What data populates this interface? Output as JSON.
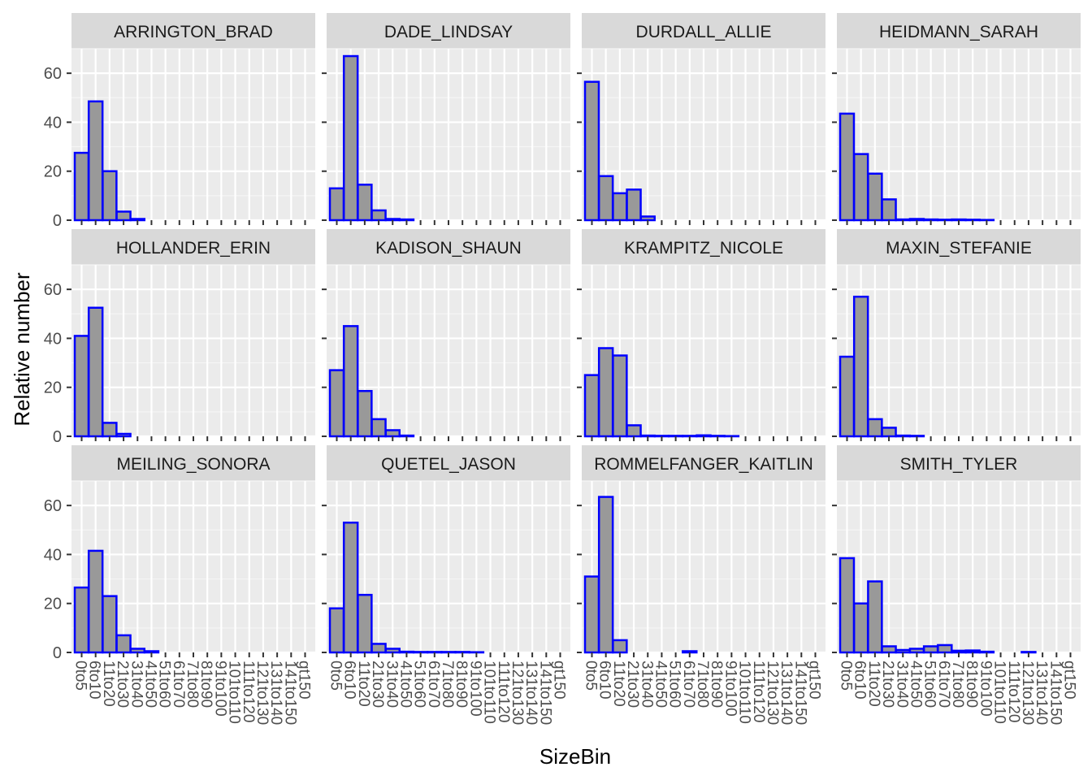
{
  "chart_data": {
    "type": "bar",
    "xlabel": "SizeBin",
    "ylabel": "Relative number",
    "yticks": [
      0,
      20,
      40,
      60
    ],
    "ylim": [
      0,
      70
    ],
    "categories": [
      "0to5",
      "6to10",
      "11to20",
      "21to30",
      "31to40",
      "41to50",
      "51to60",
      "61to70",
      "71to80",
      "81to90",
      "91to100",
      "101to110",
      "111to120",
      "121to130",
      "131to140",
      "141to150",
      "gt150"
    ],
    "bar_fill": "#999999",
    "bar_outline": "#0000ff",
    "panel_bg": "#ebebeb",
    "strip_bg": "#d9d9d9",
    "grid": true,
    "facets": [
      {
        "name": "ARRINGTON_BRAD",
        "values": [
          27.5,
          48.5,
          20,
          3.5,
          0.5,
          0,
          0,
          0,
          0,
          0,
          0,
          0,
          0,
          0,
          0,
          0,
          0
        ]
      },
      {
        "name": "DADE_LINDSAY",
        "values": [
          13,
          67,
          14.5,
          4,
          0.5,
          0.3,
          0,
          0,
          0,
          0,
          0,
          0,
          0,
          0,
          0,
          0,
          0
        ]
      },
      {
        "name": "DURDALL_ALLIE",
        "values": [
          56.5,
          18,
          11,
          12.5,
          1.5,
          0,
          0,
          0,
          0,
          0,
          0,
          0,
          0,
          0,
          0,
          0,
          0
        ]
      },
      {
        "name": "HEIDMANN_SARAH",
        "values": [
          43.5,
          27,
          19,
          8.5,
          0.3,
          0.5,
          0.3,
          0.2,
          0.3,
          0.2,
          0.1,
          0,
          0,
          0,
          0,
          0,
          0
        ]
      },
      {
        "name": "HOLLANDER_ERIN",
        "values": [
          41,
          52.5,
          5.5,
          1,
          0,
          0,
          0,
          0,
          0,
          0,
          0,
          0,
          0,
          0,
          0,
          0,
          0
        ]
      },
      {
        "name": "KADISON_SHAUN",
        "values": [
          27,
          45,
          18.5,
          7,
          2.5,
          0.3,
          0,
          0,
          0,
          0,
          0,
          0,
          0,
          0,
          0,
          0,
          0
        ]
      },
      {
        "name": "KRAMPITZ_NICOLE",
        "values": [
          25,
          36,
          33,
          4.5,
          0.3,
          0.2,
          0.2,
          0.2,
          0.4,
          0.2,
          0.1,
          0,
          0,
          0,
          0,
          0,
          0
        ]
      },
      {
        "name": "MAXIN_STEFANIE",
        "values": [
          32.5,
          57,
          7,
          3.5,
          0.3,
          0.2,
          0,
          0,
          0,
          0,
          0,
          0,
          0,
          0,
          0,
          0,
          0
        ]
      },
      {
        "name": "MEILING_SONORA",
        "values": [
          26.5,
          41.5,
          23,
          7,
          1.5,
          0.5,
          0,
          0,
          0,
          0,
          0,
          0,
          0,
          0,
          0,
          0,
          0
        ]
      },
      {
        "name": "QUETEL_JASON",
        "values": [
          18,
          53,
          23.5,
          3.5,
          1.5,
          0.3,
          0.2,
          0.2,
          0.2,
          0.2,
          0.1,
          0,
          0,
          0,
          0,
          0,
          0
        ]
      },
      {
        "name": "ROMMELFANGER_KAITLIN",
        "values": [
          31,
          63.5,
          5,
          0,
          0,
          0,
          0,
          0.5,
          0,
          0,
          0,
          0,
          0,
          0,
          0,
          0,
          0
        ]
      },
      {
        "name": "SMITH_TYLER",
        "values": [
          38.5,
          20,
          29,
          2.5,
          1,
          1.5,
          2.5,
          3,
          0.7,
          0.8,
          0.3,
          0,
          0,
          0.2,
          0,
          0,
          0
        ]
      }
    ]
  }
}
